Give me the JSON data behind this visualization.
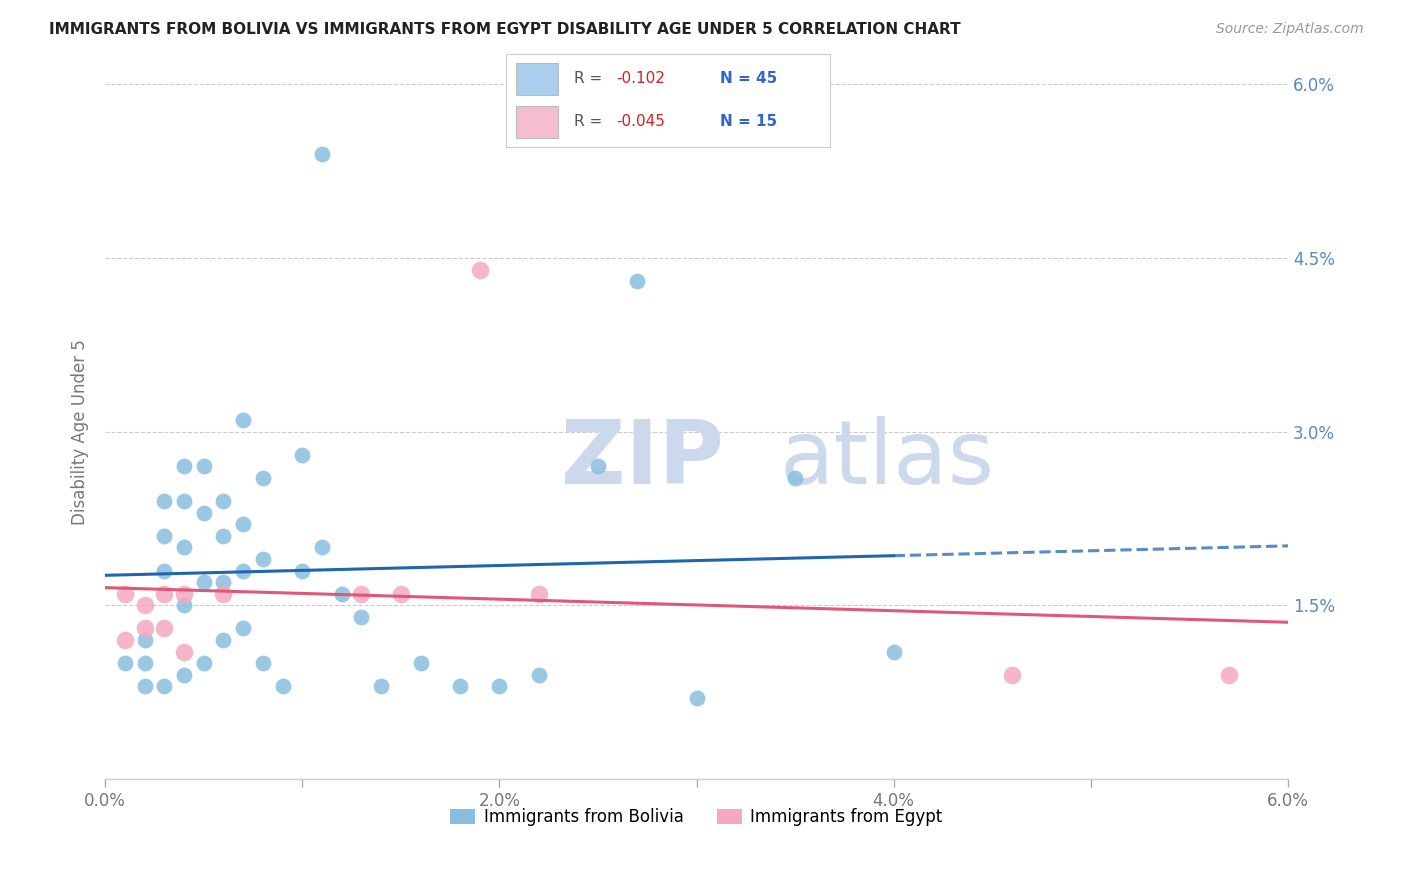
{
  "title": "IMMIGRANTS FROM BOLIVIA VS IMMIGRANTS FROM EGYPT DISABILITY AGE UNDER 5 CORRELATION CHART",
  "source": "Source: ZipAtlas.com",
  "ylabel": "Disability Age Under 5",
  "xlim": [
    0.0,
    0.06
  ],
  "ylim": [
    0.0,
    0.06
  ],
  "background_color": "#ffffff",
  "bolivia_color": "#89bde0",
  "egypt_color": "#f5a8c0",
  "legend_r_bolivia": "-0.102",
  "legend_n_bolivia": "45",
  "legend_r_egypt": "-0.045",
  "legend_n_egypt": "15",
  "trendline_bolivia_solid_color": "#2166ac",
  "trendline_bolivia_dash_color": "#2166ac",
  "trendline_egypt_color": "#e05878",
  "bolivia_x": [
    0.001,
    0.002,
    0.002,
    0.002,
    0.003,
    0.003,
    0.003,
    0.003,
    0.004,
    0.004,
    0.004,
    0.004,
    0.004,
    0.005,
    0.005,
    0.005,
    0.005,
    0.006,
    0.006,
    0.006,
    0.006,
    0.007,
    0.007,
    0.007,
    0.007,
    0.008,
    0.008,
    0.008,
    0.009,
    0.01,
    0.01,
    0.011,
    0.011,
    0.012,
    0.013,
    0.014,
    0.016,
    0.018,
    0.02,
    0.022,
    0.025,
    0.027,
    0.03,
    0.035,
    0.04
  ],
  "bolivia_y": [
    0.01,
    0.012,
    0.01,
    0.008,
    0.024,
    0.021,
    0.018,
    0.008,
    0.027,
    0.024,
    0.02,
    0.015,
    0.009,
    0.027,
    0.023,
    0.017,
    0.01,
    0.024,
    0.021,
    0.017,
    0.012,
    0.031,
    0.022,
    0.018,
    0.013,
    0.026,
    0.019,
    0.01,
    0.008,
    0.028,
    0.018,
    0.054,
    0.02,
    0.016,
    0.014,
    0.008,
    0.01,
    0.008,
    0.008,
    0.009,
    0.027,
    0.043,
    0.007,
    0.026,
    0.011
  ],
  "egypt_x": [
    0.001,
    0.001,
    0.002,
    0.002,
    0.003,
    0.003,
    0.004,
    0.004,
    0.006,
    0.013,
    0.015,
    0.019,
    0.022,
    0.046,
    0.057
  ],
  "egypt_y": [
    0.016,
    0.012,
    0.015,
    0.013,
    0.016,
    0.013,
    0.016,
    0.011,
    0.016,
    0.016,
    0.016,
    0.044,
    0.016,
    0.009,
    0.009
  ],
  "watermark_line1": "ZIP",
  "watermark_line2": "atlas",
  "watermark_color": "#ccd8ec",
  "grid_color": "#cccccc",
  "legend_box_color_bolivia": "#aacfee",
  "legend_box_color_egypt": "#f5bdd0",
  "tick_color": "#aaaaaa",
  "label_color": "#777777",
  "right_tick_color": "#5588cc"
}
